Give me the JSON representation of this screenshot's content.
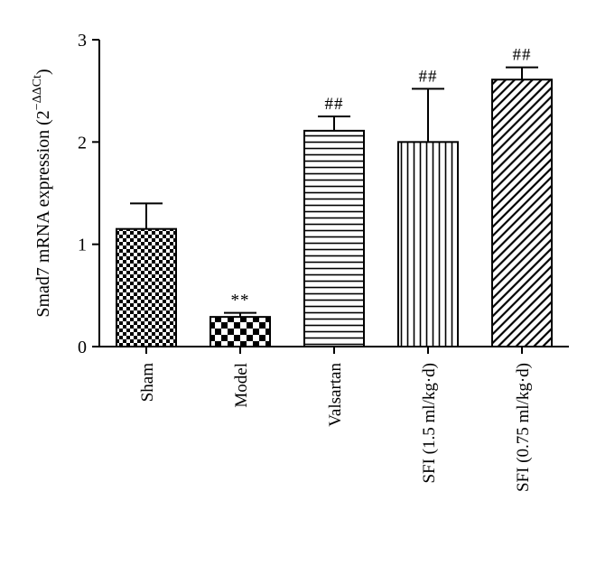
{
  "chart_data": {
    "type": "bar",
    "title": "",
    "xlabel": "",
    "ylabel": "Smad7 mRNA expression (2",
    "ylabel_superscript": "−ΔΔCt",
    "ylabel_close": ")",
    "ylim": [
      0,
      3
    ],
    "yticks": [
      "0",
      "1",
      "2",
      "3"
    ],
    "ytick_values": [
      0,
      1,
      2,
      3
    ],
    "categories": [
      "Sham",
      "Model",
      "Valsartan",
      "SFI (1.5 ml/kg·d)",
      "SFI (0.75 ml/kg·d)"
    ],
    "values": [
      1.15,
      0.29,
      2.11,
      2.0,
      2.61
    ],
    "errors": [
      0.25,
      0.04,
      0.14,
      0.52,
      0.12
    ],
    "significance": [
      "",
      "**",
      "##",
      "##",
      "##"
    ],
    "patterns": [
      "checker-small",
      "checker-large",
      "horizontal-lines",
      "vertical-lines",
      "diagonal-lines"
    ],
    "bar_color": "#000000",
    "grid": false,
    "legend": "none"
  }
}
